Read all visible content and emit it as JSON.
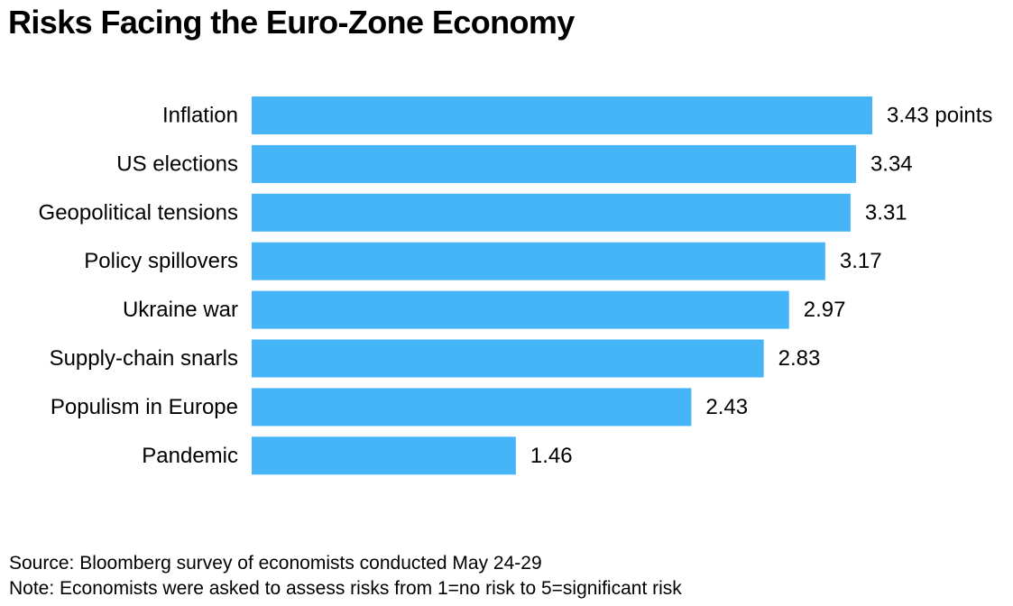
{
  "chart_data": {
    "type": "bar",
    "orientation": "horizontal",
    "title": "Risks Facing the Euro-Zone Economy",
    "categories": [
      "Inflation",
      "US elections",
      "Geopolitical tensions",
      "Policy spillovers",
      "Ukraine war",
      "Supply-chain snarls",
      "Populism in Europe",
      "Pandemic"
    ],
    "values": [
      3.43,
      3.34,
      3.31,
      3.17,
      2.97,
      2.83,
      2.43,
      1.46
    ],
    "data_labels": [
      "3.43 points",
      "3.34",
      "3.31",
      "3.17",
      "2.97",
      "2.83",
      "2.43",
      "1.46"
    ],
    "xlabel": "",
    "ylabel": "",
    "xlim": [
      0,
      3.43
    ],
    "grid": false,
    "bar_color": "#45b5f8"
  },
  "footer": {
    "source": "Source: Bloomberg survey of economists conducted May 24-29",
    "note": "Note: Economists were asked to assess risks from 1=no risk to 5=significant risk"
  }
}
